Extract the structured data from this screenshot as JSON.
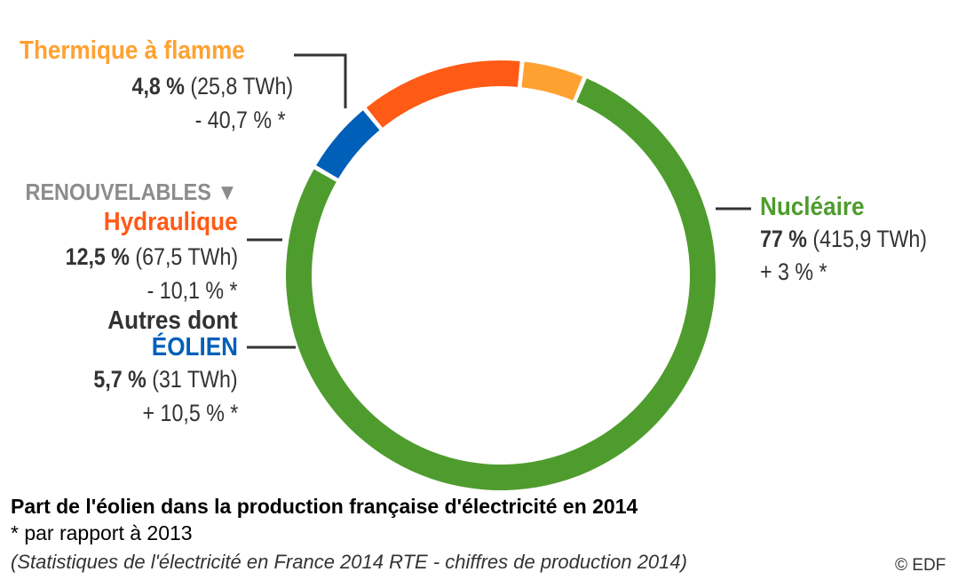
{
  "chart_data": {
    "type": "pie",
    "title": "Part de l'éolien dans la production française d'électricité en 2014",
    "note": "* par rapport à 2013",
    "source": "(Statistiques de l'électricité en France 2014 RTE - chiffres de production 2014)",
    "credit": "© EDF",
    "group_label": "RENOUVELABLES ▼",
    "slices": [
      {
        "name": "Nucléaire",
        "percent": 77,
        "percent_label": "77 %",
        "energy_label": "(415,9 TWh)",
        "change_label": "+ 3 % *",
        "color": "#4f9c2e"
      },
      {
        "name": "Autres dont",
        "name2": "ÉOLIEN",
        "percent": 5.7,
        "percent_label": "5,7 %",
        "energy_label": "(31 TWh)",
        "change_label": "+ 10,5 % *",
        "color": "#005fb8"
      },
      {
        "name": "Hydraulique",
        "percent": 12.5,
        "percent_label": "12,5 %",
        "energy_label": "(67,5 TWh)",
        "change_label": "- 10,1 % *",
        "color": "#ff5a16"
      },
      {
        "name": "Thermique à flamme",
        "percent": 4.8,
        "percent_label": "4,8 %",
        "energy_label": "(25,8 TWh)",
        "change_label": "- 40,7 % *",
        "color": "#ffa131"
      }
    ],
    "colors": {
      "thermique": "#ffa131",
      "hydraulique": "#ff5a16",
      "eolien": "#005fb8",
      "nucleaire": "#4f9c2e",
      "autres_dont": "#333333",
      "renouvelables": "#8c8c8c"
    }
  }
}
